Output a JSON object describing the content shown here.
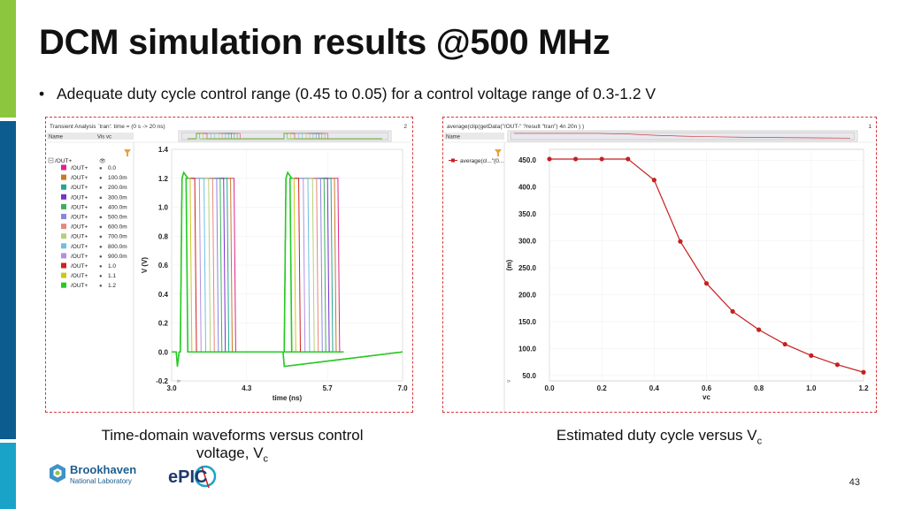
{
  "slide": {
    "title": "DCM simulation results @500 MHz",
    "bullet": "Adequate duty cycle control range (0.45 to 0.05) for a control voltage range of 0.3-1.2 V",
    "caption_left_line1": "Time-domain waveforms versus control",
    "caption_left_line2": "voltage, V",
    "caption_left_sub": "c",
    "caption_right": "Estimated duty cycle versus V",
    "caption_right_sub": "c",
    "page_number": "43"
  },
  "logos": {
    "bnl_line1": "Brookhaven",
    "bnl_line2": "National Laboratory",
    "epic_text": "ePIC"
  },
  "colors": {
    "bar_green": "#8cc63f",
    "bar_blue": "#0d5c8f",
    "bar_cyan": "#1aa3c8",
    "panel_border": "#d23b3b"
  },
  "left_panel": {
    "header": "Transient Analysis `tran': time = (0 s -> 20 ns)",
    "header_num": "2",
    "col_name": "Name",
    "col_vis": "Vis",
    "col_vc": "vc",
    "group": "/OUT+",
    "rows": [
      {
        "name": "/OUT+",
        "vc": "0.0",
        "color": "#e0228a"
      },
      {
        "name": "/OUT+",
        "vc": "100.0m",
        "color": "#c77a28"
      },
      {
        "name": "/OUT+",
        "vc": "200.0m",
        "color": "#1fa88f"
      },
      {
        "name": "/OUT+",
        "vc": "300.0m",
        "color": "#7b2fd0"
      },
      {
        "name": "/OUT+",
        "vc": "400.0m",
        "color": "#3fae5a"
      },
      {
        "name": "/OUT+",
        "vc": "500.0m",
        "color": "#8a86e0"
      },
      {
        "name": "/OUT+",
        "vc": "600.0m",
        "color": "#e8867a"
      },
      {
        "name": "/OUT+",
        "vc": "700.0m",
        "color": "#b7cf7a"
      },
      {
        "name": "/OUT+",
        "vc": "800.0m",
        "color": "#6fbfe0"
      },
      {
        "name": "/OUT+",
        "vc": "900.0m",
        "color": "#b48fe0"
      },
      {
        "name": "/OUT+",
        "vc": "1.0",
        "color": "#d11f1f"
      },
      {
        "name": "/OUT+",
        "vc": "1.1",
        "color": "#c8c81a"
      },
      {
        "name": "/OUT+",
        "vc": "1.2",
        "color": "#22cc22"
      }
    ]
  },
  "right_panel": {
    "header": "average(clip(getData(\"/OUT-\" ?result \"tran\") 4n 20n ) )",
    "header_num": "1",
    "col_name": "Name",
    "legend_label": "average(cl...\"(0..."
  },
  "chart_data": [
    {
      "type": "line",
      "title": "",
      "xlabel": "time (ns)",
      "ylabel": "V (V)",
      "xlim": [
        3.0,
        7.0
      ],
      "ylim": [
        -0.2,
        1.4
      ],
      "x_ticks": [
        "3.0",
        "4.3",
        "5.7",
        "7.0"
      ],
      "y_ticks": [
        "1.4",
        "1.2",
        "1.0",
        "0.8",
        "0.6",
        "0.4",
        "0.2",
        "0.0",
        "-0.2"
      ],
      "series_note": "13 pulse waveforms, one per vc value",
      "rising_edges_ns": [
        3.18,
        4.98
      ],
      "falling_offsets_ns": [
        0.9,
        0.84,
        0.78,
        0.72,
        0.66,
        0.6,
        0.53,
        0.46,
        0.38,
        0.3,
        0.22,
        0.14,
        0.07
      ]
    },
    {
      "type": "line",
      "title": "",
      "xlabel": "vc",
      "ylabel": "(m)",
      "xlim": [
        0.0,
        1.2
      ],
      "ylim": [
        40,
        470
      ],
      "x_ticks": [
        "0.0",
        "0.2",
        "0.4",
        "0.6",
        "0.8",
        "1.0",
        "1.2"
      ],
      "y_ticks": [
        "450.0",
        "400.0",
        "350.0",
        "300.0",
        "250.0",
        "200.0",
        "150.0",
        "100.0",
        "50.0"
      ],
      "x": [
        0.0,
        0.1,
        0.2,
        0.3,
        0.4,
        0.5,
        0.6,
        0.7,
        0.8,
        0.9,
        1.0,
        1.1,
        1.2
      ],
      "values": [
        452,
        452,
        452,
        452,
        413,
        299,
        221,
        169,
        135,
        108,
        87,
        70,
        56
      ],
      "color": "#c62020"
    }
  ]
}
